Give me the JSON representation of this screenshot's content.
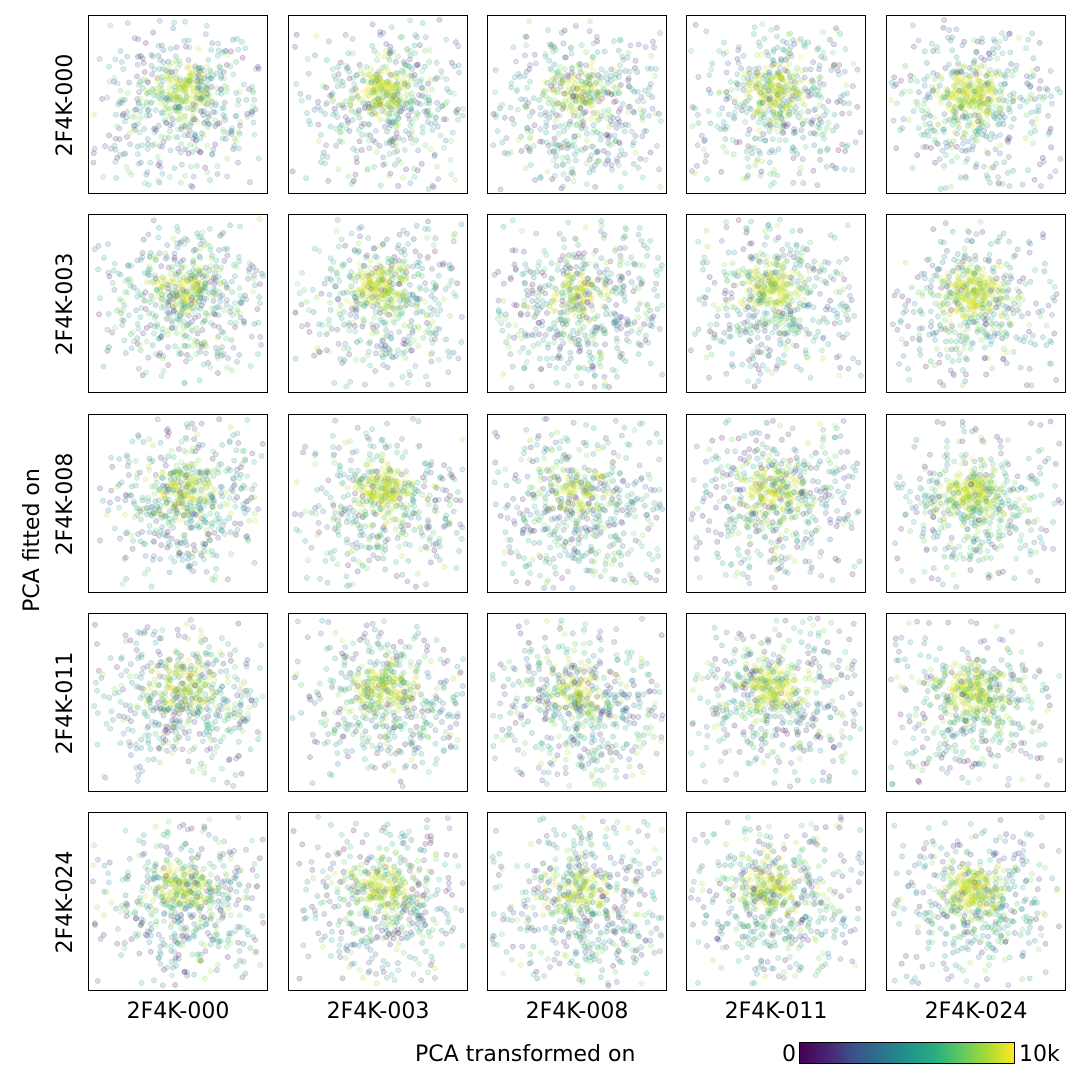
{
  "chart_data": {
    "type": "scatter",
    "title": "",
    "xlabel": "PCA transformed on",
    "ylabel": "PCA fitted on",
    "rows": [
      "2F4K-000",
      "2F4K-003",
      "2F4K-008",
      "2F4K-011",
      "2F4K-024"
    ],
    "columns": [
      "2F4K-000",
      "2F4K-003",
      "2F4K-008",
      "2F4K-011",
      "2F4K-024"
    ],
    "grid": false,
    "axis_ticks": false,
    "colormap": "viridis",
    "colorbar": {
      "min_label": "0",
      "max_label": "10k",
      "placement": "bottom-right"
    },
    "point_alpha": 0.12
  }
}
